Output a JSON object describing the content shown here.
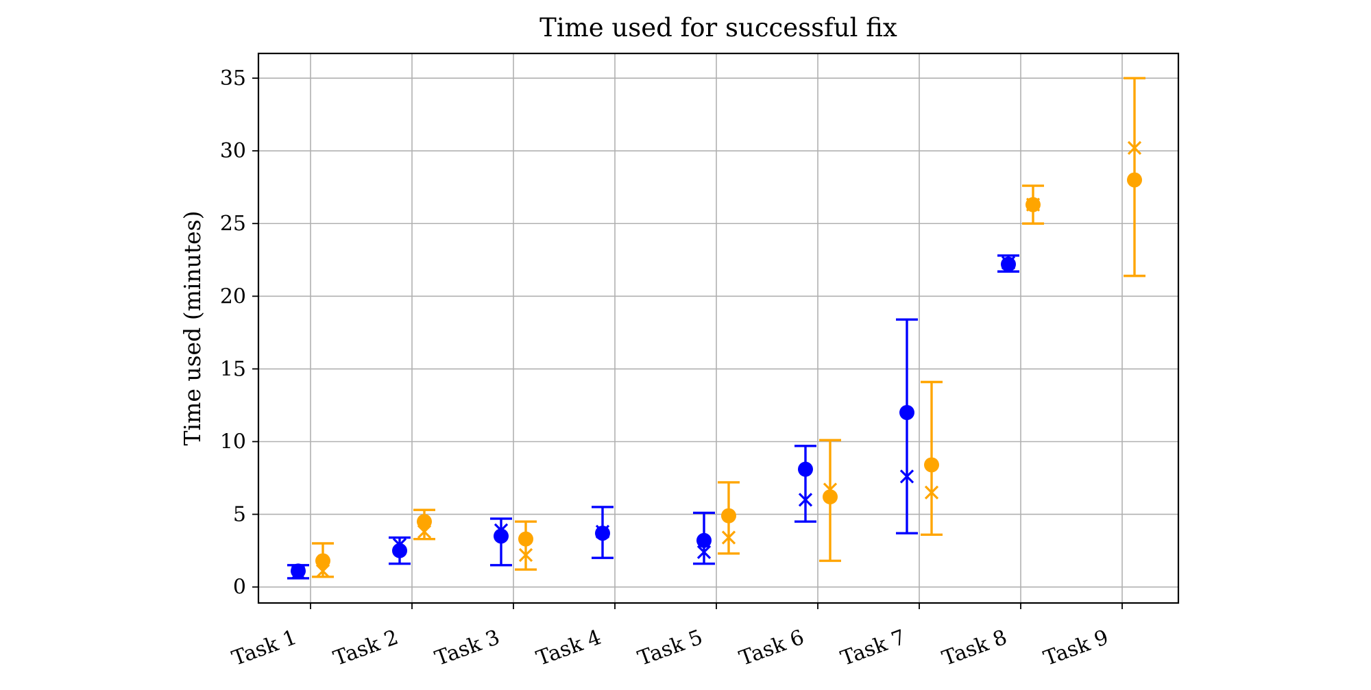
{
  "chart_data": {
    "type": "errorbar",
    "title": "Time used for successful fix",
    "xlabel": "",
    "ylabel": "Time used (minutes)",
    "categories": [
      "Task 1",
      "Task 2",
      "Task 3",
      "Task 4",
      "Task 5",
      "Task 6",
      "Task 7",
      "Task 8",
      "Task 9"
    ],
    "ylim": [
      -1.1,
      36.7
    ],
    "yticks": [
      0,
      5,
      10,
      15,
      20,
      25,
      30,
      35
    ],
    "grid": true,
    "series": [
      {
        "name": "blue",
        "color": "#0000ff",
        "mean": [
          1.1,
          2.5,
          3.5,
          3.7,
          3.2,
          8.1,
          12.0,
          22.2,
          null
        ],
        "median": [
          1.0,
          2.9,
          3.9,
          3.8,
          2.4,
          6.0,
          7.6,
          22.3,
          null
        ],
        "lower": [
          0.6,
          1.6,
          1.5,
          2.0,
          1.6,
          4.5,
          3.7,
          21.7,
          null
        ],
        "upper": [
          1.5,
          3.4,
          4.7,
          5.5,
          5.1,
          9.7,
          18.4,
          22.8,
          null
        ]
      },
      {
        "name": "orange",
        "color": "#ffa500",
        "mean": [
          1.8,
          4.5,
          3.3,
          null,
          4.9,
          6.2,
          8.4,
          26.3,
          28.0
        ],
        "median": [
          1.1,
          3.8,
          2.2,
          null,
          3.4,
          6.7,
          6.5,
          26.3,
          30.2
        ],
        "lower": [
          0.7,
          3.3,
          1.2,
          null,
          2.3,
          1.8,
          3.6,
          25.0,
          21.4
        ],
        "upper": [
          3.0,
          5.3,
          4.5,
          null,
          7.2,
          10.1,
          14.1,
          27.6,
          35.0
        ]
      }
    ]
  }
}
